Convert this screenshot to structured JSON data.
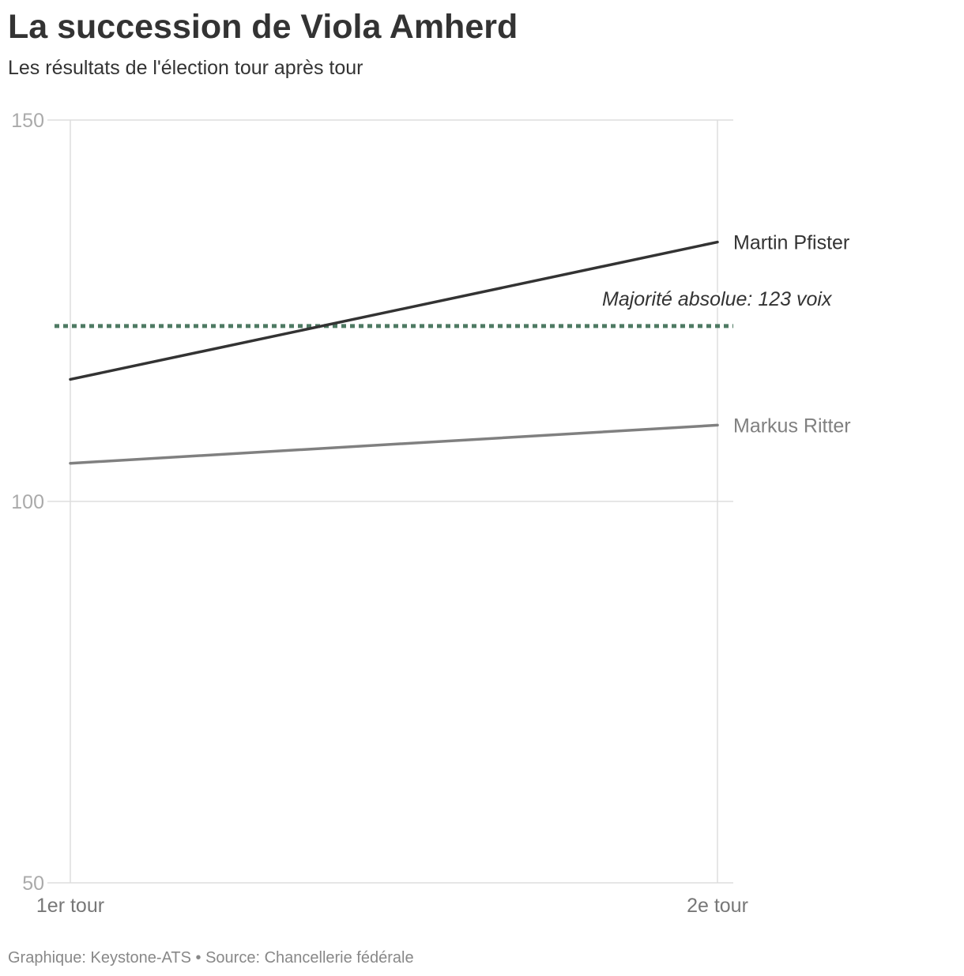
{
  "header": {
    "title": "La succession de Viola Amherd",
    "subtitle": "Les résultats de l'élection tour après tour"
  },
  "footer": {
    "credit": "Graphique: Keystone-ATS • Source: Chancellerie fédérale"
  },
  "chart_data": {
    "type": "line",
    "title": "La succession de Viola Amherd",
    "subtitle": "Les résultats de l'élection tour après tour",
    "categories": [
      "1er tour",
      "2e tour"
    ],
    "ylim": [
      50,
      150
    ],
    "yticks": [
      "50",
      "100",
      "150"
    ],
    "grid": true,
    "series": [
      {
        "name": "Martin Pfister",
        "values": [
          116,
          134
        ],
        "color": "#333333"
      },
      {
        "name": "Markus Ritter",
        "values": [
          105,
          110
        ],
        "color": "#808080"
      }
    ],
    "reference_line": {
      "value": 123,
      "label": "Majorité absolue: 123 voix",
      "color": "#4e7a63"
    }
  }
}
